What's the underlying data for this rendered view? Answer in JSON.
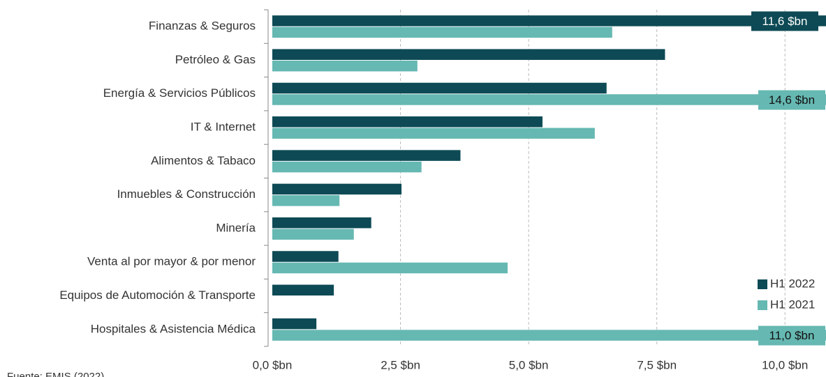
{
  "chart_data": {
    "type": "hbar",
    "categories": [
      "Finanzas & Seguros",
      "Petróleo & Gas",
      "Energía & Servicios Públicos",
      "IT & Internet",
      "Alimentos & Tabaco",
      "Inmuebles & Construcción",
      "Minería",
      "Venta al por mayor & por menor",
      "Equipos de Automoción & Transporte",
      "Hospitales & Asistencia Médica"
    ],
    "series": [
      {
        "name": "H1 2022",
        "color": "#0d4a55",
        "values": [
          11.6,
          7.66,
          6.52,
          5.27,
          3.67,
          2.52,
          1.93,
          1.29,
          1.2,
          0.86
        ],
        "value_labels": [
          "11,6 $bn",
          null,
          null,
          null,
          null,
          null,
          null,
          null,
          null,
          null
        ]
      },
      {
        "name": "H1 2021",
        "color": "#66b8b2",
        "values": [
          6.63,
          2.83,
          14.6,
          6.29,
          2.91,
          1.31,
          1.59,
          4.59,
          null,
          11.0
        ],
        "value_labels": [
          null,
          null,
          "14,6 $bn",
          null,
          null,
          null,
          null,
          null,
          null,
          "11,0 $bn"
        ]
      }
    ],
    "xlim": [
      0,
      10.8
    ],
    "xticks": [
      {
        "value": 0,
        "label": "0,0 $bn"
      },
      {
        "value": 2.5,
        "label": "2,5 $bn"
      },
      {
        "value": 5,
        "label": "5,0 $bn"
      },
      {
        "value": 7.5,
        "label": "7,5 $bn"
      },
      {
        "value": 10,
        "label": "10,0 $bn"
      }
    ],
    "grid": true,
    "legend": "lower right",
    "source": "Fuente: EMIS (2022)"
  }
}
